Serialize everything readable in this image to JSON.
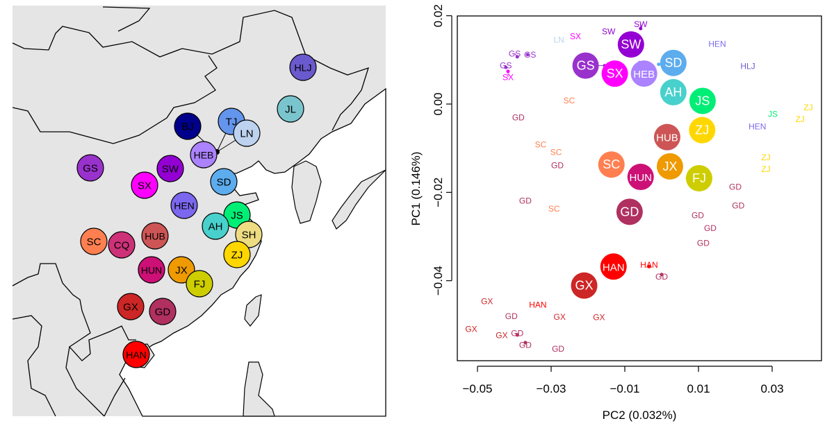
{
  "map": {
    "land_color": "#e5e5e5",
    "sea_color": "#ffffff",
    "sites": [
      {
        "code": "HLJ",
        "color": "#6a5acd"
      },
      {
        "code": "JL",
        "color": "#7ac5cd"
      },
      {
        "code": "BJ",
        "color": "#00008b"
      },
      {
        "code": "TJ",
        "color": "#6495ed"
      },
      {
        "code": "LN",
        "color": "#bcd2ee"
      },
      {
        "code": "HEB",
        "color": "#ab82ff"
      },
      {
        "code": "SD",
        "color": "#5cacee"
      },
      {
        "code": "GS",
        "color": "#9932cc"
      },
      {
        "code": "SW",
        "color": "#9400d3"
      },
      {
        "code": "SX",
        "color": "#ff00ff"
      },
      {
        "code": "HEN",
        "color": "#7b68ee"
      },
      {
        "code": "JS",
        "color": "#00ee76"
      },
      {
        "code": "AH",
        "color": "#48d1cc"
      },
      {
        "code": "SH",
        "color": "#eedc82"
      },
      {
        "code": "SC",
        "color": "#ff7f50"
      },
      {
        "code": "CQ",
        "color": "#cd3278"
      },
      {
        "code": "HUB",
        "color": "#cd5555"
      },
      {
        "code": "HUN",
        "color": "#cd1076"
      },
      {
        "code": "JX",
        "color": "#ee9a00"
      },
      {
        "code": "ZJ",
        "color": "#ffd700"
      },
      {
        "code": "FJ",
        "color": "#cdcd00"
      },
      {
        "code": "GX",
        "color": "#cd2626"
      },
      {
        "code": "GD",
        "color": "#b03060"
      },
      {
        "code": "HAN",
        "color": "#ff0000"
      }
    ]
  },
  "chart_data": {
    "type": "scatter",
    "xlabel": "PC2 (0.032%)",
    "ylabel": "PC1 (0.146%)",
    "xlim": [
      -0.056,
      0.043
    ],
    "ylim": [
      -0.058,
      0.02
    ],
    "xticks": [
      -0.05,
      -0.03,
      -0.01,
      0.01,
      0.03
    ],
    "xtick_labels": [
      "−0.05",
      "−0.03",
      "−0.01",
      "0.01",
      "0.03"
    ],
    "yticks": [
      0.02,
      0.0,
      -0.02,
      -0.04
    ],
    "ytick_labels": [
      "0.02",
      "0.00",
      "−0.02",
      "−0.04"
    ],
    "grid": false,
    "legend": "none",
    "population_centroids": [
      {
        "label": "GS",
        "x": -0.0155,
        "y": 0.0087
      },
      {
        "label": "SW",
        "x": -0.0087,
        "y": 0.0116
      },
      {
        "label": "SD",
        "x": -0.0008,
        "y": 0.009
      },
      {
        "label": "HEB",
        "x": -0.006,
        "y": 0.0094
      },
      {
        "label": "SX",
        "x": -0.0102,
        "y": 0.0079
      },
      {
        "label": "AH",
        "x": 0.0034,
        "y": 0.003
      },
      {
        "label": "JS",
        "x": 0.0087,
        "y": 0.0005
      },
      {
        "label": "ZJ",
        "x": 0.011,
        "y": -0.0057
      },
      {
        "label": "HUB",
        "x": 0.0015,
        "y": -0.0087
      },
      {
        "label": "JX",
        "x": 0.0026,
        "y": -0.0129
      },
      {
        "label": "SC",
        "x": -0.0121,
        "y": -0.0137
      },
      {
        "label": "HUN",
        "x": -0.0044,
        "y": -0.0165
      },
      {
        "label": "FJ",
        "x": 0.007,
        "y": -0.0168
      },
      {
        "label": "GD",
        "x": -0.0087,
        "y": -0.0244
      },
      {
        "label": "HAN",
        "x": -0.0134,
        "y": -0.0368
      },
      {
        "label": "GX",
        "x": -0.0207,
        "y": -0.0411
      }
    ],
    "individual_points": [
      {
        "label": "GX",
        "x": -0.0474,
        "y": -0.0446
      },
      {
        "label": "GD",
        "x": -0.0408,
        "y": -0.048
      },
      {
        "label": "GX",
        "x": -0.0517,
        "y": -0.0509
      },
      {
        "label": "GX",
        "x": -0.0434,
        "y": -0.0523
      },
      {
        "label": "GD",
        "x": -0.0392,
        "y": -0.0523
      },
      {
        "label": "GD",
        "x": -0.037,
        "y": -0.054
      },
      {
        "label": "GD",
        "x": -0.0281,
        "y": -0.0554
      },
      {
        "label": "GX",
        "x": -0.0277,
        "y": -0.0481
      },
      {
        "label": "GX",
        "x": -0.017,
        "y": -0.0482
      },
      {
        "label": "HAN",
        "x": -0.0336,
        "y": -0.0454
      },
      {
        "label": "GD",
        "x": -0.0389,
        "y": -0.003
      },
      {
        "label": "GD",
        "x": -0.037,
        "y": -0.0218
      },
      {
        "label": "SC",
        "x": -0.0328,
        "y": -0.0091
      },
      {
        "label": "SC",
        "x": -0.0251,
        "y": 0.0009
      },
      {
        "label": "SC",
        "x": -0.0292,
        "y": -0.0236
      },
      {
        "label": "SC",
        "x": -0.0287,
        "y": -0.0108
      },
      {
        "label": "GD",
        "x": -0.0283,
        "y": -0.0138
      },
      {
        "label": "ZJ",
        "x": 0.0398,
        "y": -0.0008
      },
      {
        "label": "ZJ",
        "x": 0.0376,
        "y": -0.0033
      },
      {
        "label": "ZJ",
        "x": 0.0283,
        "y": -0.0146
      },
      {
        "label": "ZJ",
        "x": 0.0283,
        "y": -0.0121
      },
      {
        "label": "JS",
        "x": 0.0302,
        "y": -0.0022
      },
      {
        "label": "HLJ",
        "x": 0.0234,
        "y": 0.0086
      },
      {
        "label": "HEN",
        "x": 0.0151,
        "y": 0.0137
      },
      {
        "label": "HEN",
        "x": 0.026,
        "y": -0.005
      },
      {
        "label": "GD",
        "x": 0.0208,
        "y": -0.0229
      },
      {
        "label": "GD",
        "x": 0.02,
        "y": -0.0187
      },
      {
        "label": "GD",
        "x": 0.0113,
        "y": -0.0314
      },
      {
        "label": "GD",
        "x": 0.0132,
        "y": -0.028
      },
      {
        "label": "GD",
        "x": 0.0098,
        "y": -0.0251
      },
      {
        "label": "GD",
        "x": 0.0,
        "y": -0.0386
      },
      {
        "label": "HAN",
        "x": -0.0034,
        "y": -0.0368
      },
      {
        "label": "GS",
        "x": -0.0392,
        "y": 0.0107
      },
      {
        "label": "GS",
        "x": -0.0364,
        "y": 0.0112
      },
      {
        "label": "GS",
        "x": -0.0423,
        "y": 0.0083
      },
      {
        "label": "SX",
        "x": -0.0417,
        "y": 0.0074
      },
      {
        "label": "SW",
        "x": -0.0143,
        "y": 0.0165
      },
      {
        "label": "SW",
        "x": -0.0057,
        "y": 0.0171
      },
      {
        "label": "SX",
        "x": -0.0234,
        "y": 0.0154
      },
      {
        "label": "LN",
        "x": -0.0279,
        "y": 0.0146
      }
    ]
  }
}
